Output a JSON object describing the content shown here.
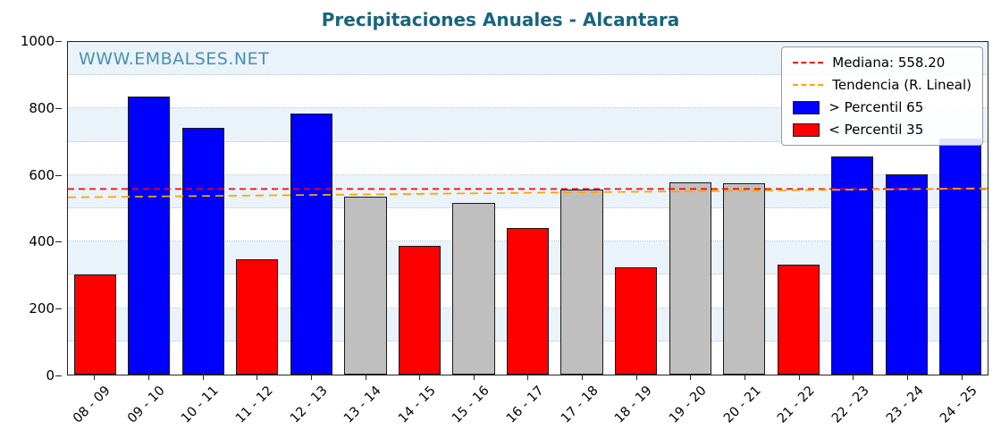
{
  "title": "Precipitaciones Anuales - Alcantara",
  "watermark": "WWW.EMBALSES.NET",
  "colors": {
    "blue": "#0000ff",
    "red": "#ff0000",
    "gray": "#bfbfbf",
    "median": "#ff0000",
    "trend": "#ffa500",
    "title": "#17657d",
    "watermark": "#4a8fb5",
    "band": "#e9f3f9"
  },
  "legend": [
    {
      "label": "Mediana: 558.20",
      "swatch": "line",
      "color": "#ff0000"
    },
    {
      "label": "Tendencia (R. Lineal)",
      "swatch": "line",
      "color": "#ffa500"
    },
    {
      "label": " > Percentil 65",
      "swatch": "patch",
      "color": "#0000ff"
    },
    {
      "label": " < Percentil 35",
      "swatch": "patch",
      "color": "#ff0000"
    }
  ],
  "chart_data": {
    "type": "bar",
    "title": "Precipitaciones Anuales - Alcantara",
    "categories": [
      "08 - 09",
      "09 - 10",
      "10 - 11",
      "11 - 12",
      "12 - 13",
      "13 - 14",
      "14 - 15",
      "15 - 16",
      "16 - 17",
      "17 - 18",
      "18 - 19",
      "19 - 20",
      "20 - 21",
      "21 - 22",
      "22 - 23",
      "23 - 24",
      "24 - 25"
    ],
    "values": [
      300,
      835,
      742,
      348,
      785,
      535,
      386,
      517,
      440,
      557,
      322,
      578,
      575,
      332,
      655,
      603,
      710
    ],
    "bar_colors": [
      "red",
      "blue",
      "blue",
      "red",
      "blue",
      "gray",
      "red",
      "gray",
      "red",
      "gray",
      "red",
      "gray",
      "gray",
      "red",
      "blue",
      "blue",
      "blue"
    ],
    "median": 558.2,
    "trend_line": {
      "start_value": 533,
      "end_value": 560
    },
    "ylim": [
      0,
      1000
    ],
    "yticks": [
      0,
      200,
      400,
      600,
      800,
      1000
    ],
    "xlabel": "",
    "ylabel": "",
    "grid": true,
    "legend_position": "top-right"
  }
}
